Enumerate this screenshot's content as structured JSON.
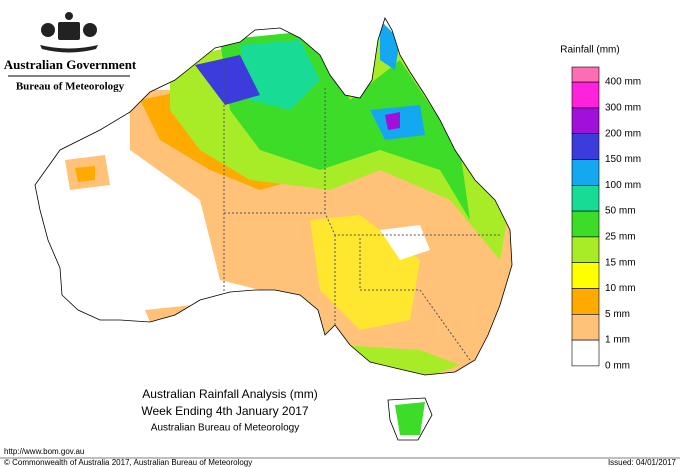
{
  "header": {
    "government": "Australian Government",
    "bureau": "Bureau of Meteorology"
  },
  "legend": {
    "title": "Rainfall (mm)",
    "top_color": "#ff6eb4",
    "items": [
      {
        "label": "400 mm",
        "color": "#ff22dd"
      },
      {
        "label": "300 mm",
        "color": "#a010d8"
      },
      {
        "label": "200 mm",
        "color": "#3c3cdc"
      },
      {
        "label": "150 mm",
        "color": "#14a8f0"
      },
      {
        "label": "100 mm",
        "color": "#18dc96"
      },
      {
        "label": "50 mm",
        "color": "#3cdc28"
      },
      {
        "label": "25 mm",
        "color": "#a8ec28"
      },
      {
        "label": "15 mm",
        "color": "#ffff00"
      },
      {
        "label": "10 mm",
        "color": "#ffaa00"
      },
      {
        "label": "5 mm",
        "color": "#ffc278"
      },
      {
        "label": "1 mm",
        "color": "#ffffff"
      }
    ]
  },
  "legend_last_label": "0 mm",
  "caption": {
    "title": "Australian Rainfall Analysis (mm)",
    "week": "Week Ending 4th January 2017",
    "source": "Australian Bureau of Meteorology"
  },
  "footer": {
    "url": "http://www.bom.gov.au",
    "copyright": "© Commonwealth of Australia 2017, Australian Bureau of Meteorology",
    "issued": "Issued: 04/01/2017"
  }
}
